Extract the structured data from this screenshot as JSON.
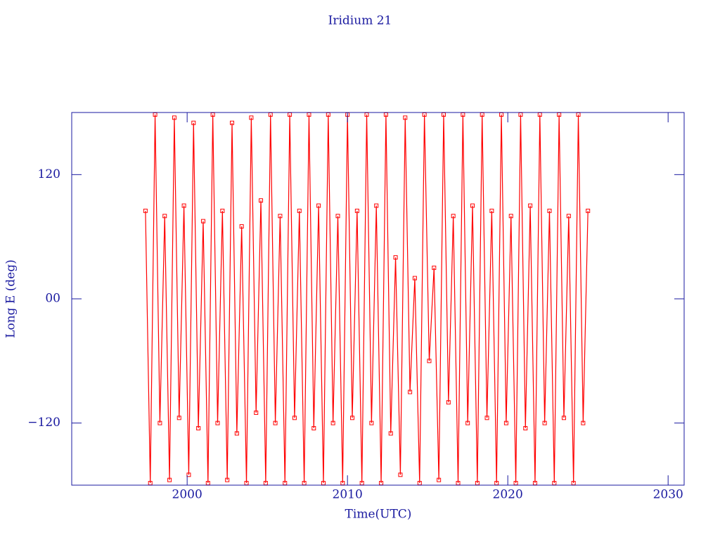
{
  "chart_data": {
    "type": "line",
    "title": "Iridium 21",
    "x_label": "Time(UTC)",
    "y_label": "Long E (deg)",
    "xlim": [
      1992.8,
      2031.0
    ],
    "xticks": [
      2000,
      2010,
      2020,
      2030
    ],
    "ylim": [
      -180,
      180
    ],
    "yticks": [
      {
        "value": 120,
        "label": "120"
      },
      {
        "value": 0,
        "label": "00"
      },
      {
        "value": -120,
        "label": "−120"
      }
    ],
    "series": [
      {
        "color": "#ff0000",
        "x": [
          1997.4,
          1997.7,
          1998.0,
          1998.3,
          1998.6,
          1998.9,
          1999.2,
          1999.5,
          1999.8,
          2000.1,
          2000.4,
          2000.7,
          2001.0,
          2001.3,
          2001.6,
          2001.9,
          2002.2,
          2002.5,
          2002.8,
          2003.1,
          2003.4,
          2003.7,
          2004.0,
          2004.3,
          2004.6,
          2004.9,
          2005.2,
          2005.5,
          2005.8,
          2006.1,
          2006.4,
          2006.7,
          2007.0,
          2007.3,
          2007.6,
          2007.9,
          2008.2,
          2008.5,
          2008.8,
          2009.1,
          2009.4,
          2009.7,
          2010.0,
          2010.3,
          2010.6,
          2010.9,
          2011.2,
          2011.5,
          2011.8,
          2012.1,
          2012.4,
          2012.7,
          2013.0,
          2013.3,
          2013.6,
          2013.9,
          2014.2,
          2014.5,
          2014.8,
          2015.1,
          2015.4,
          2015.7,
          2016.0,
          2016.3,
          2016.6,
          2016.9,
          2017.2,
          2017.5,
          2017.8,
          2018.1,
          2018.4,
          2018.7,
          2019.0,
          2019.3,
          2019.6,
          2019.9,
          2020.2,
          2020.5,
          2020.8,
          2021.1,
          2021.4,
          2021.7,
          2022.0,
          2022.3,
          2022.6,
          2022.9,
          2023.2,
          2023.5,
          2023.8,
          2024.1,
          2024.4,
          2024.7,
          2025.0
        ],
        "values": [
          85,
          -178,
          178,
          -120,
          80,
          -175,
          175,
          -115,
          90,
          -170,
          170,
          -125,
          75,
          -178,
          178,
          -120,
          85,
          -175,
          170,
          -130,
          70,
          -178,
          175,
          -110,
          95,
          -178,
          178,
          -120,
          80,
          -178,
          178,
          -115,
          85,
          -178,
          178,
          -125,
          90,
          -178,
          178,
          -120,
          80,
          -178,
          178,
          -115,
          85,
          -178,
          178,
          -120,
          90,
          -178,
          178,
          -130,
          40,
          -170,
          175,
          -90,
          20,
          -178,
          178,
          -60,
          30,
          -175,
          178,
          -100,
          80,
          -178,
          178,
          -120,
          90,
          -178,
          178,
          -115,
          85,
          -178,
          178,
          -120,
          80,
          -178,
          178,
          -125,
          90,
          -178,
          178,
          -120,
          85,
          -178,
          178,
          -115,
          80,
          -178,
          178,
          -120,
          85
        ]
      }
    ]
  }
}
